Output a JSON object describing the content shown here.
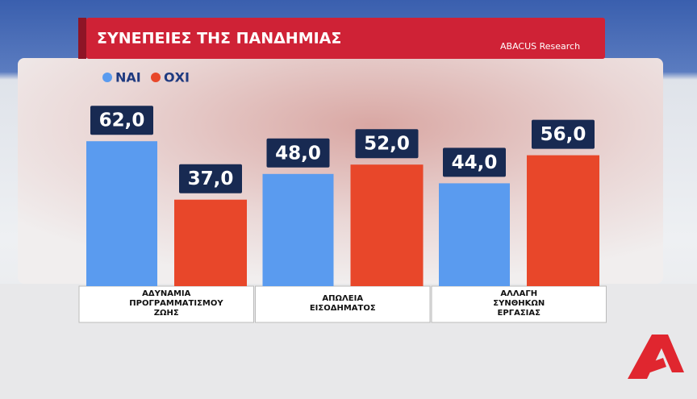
{
  "chart_data": {
    "type": "bar",
    "title": "ΣΥΝΕΠΕΙΕΣ ΤΗΣ ΠΑΝΔΗΜΙΑΣ",
    "source": "ABACUS Research",
    "categories": [
      "ΑΔΥΝΑΜΙΑ ΠΡΟΓΡΑΜΜΑΤΙΣΜΟΥ ΖΩΗΣ",
      "ΑΠΩΛΕΙΑ ΕΙΣΟΔΗΜΑΤΟΣ",
      "ΑΛΛΑΓΗ ΣΥΝΘΗΚΩΝ ΕΡΓΑΣΙΑΣ"
    ],
    "series": [
      {
        "name": "ΝΑΙ",
        "color": "#5a9bef",
        "values": [
          62,
          48,
          44
        ],
        "value_labels": [
          "62,0",
          "48,0",
          "44,0"
        ]
      },
      {
        "name": "ΟΧΙ",
        "color": "#e8472a",
        "values": [
          37,
          52,
          56
        ],
        "value_labels": [
          "37,0",
          "52,0",
          "56,0"
        ]
      }
    ]
  }
}
